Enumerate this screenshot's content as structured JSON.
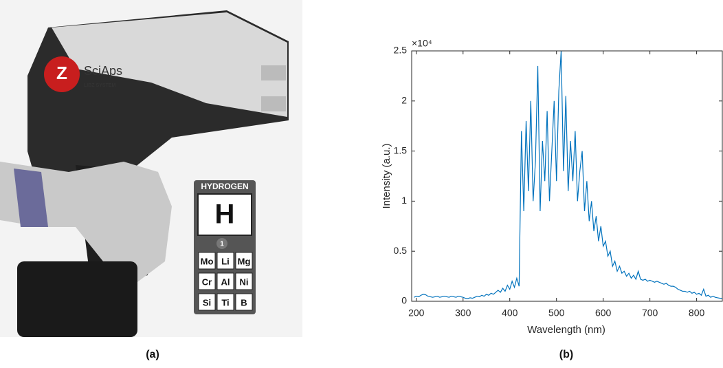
{
  "panels": {
    "a": "(a)",
    "b": "(b)"
  },
  "photo": {
    "brand": "SciAps",
    "model": "LIBZ SYSTEM",
    "badge": "HYDROGEN",
    "symbol": "H",
    "number": "1",
    "elements": [
      "Mo",
      "Li",
      "Mg",
      "Cr",
      "Al",
      "Ni",
      "Si",
      "Ti",
      "B"
    ]
  },
  "chart_data": {
    "type": "line",
    "xlabel": "Wavelength (nm)",
    "ylabel": "Intensity (a.u.)",
    "y_multiplier": "×10⁴",
    "color": "#0072bd",
    "grid": false,
    "xlim": [
      190,
      855
    ],
    "xticks": [
      200,
      300,
      400,
      500,
      600,
      700,
      800
    ],
    "ylim": [
      0,
      25000
    ],
    "yticks": [
      {
        "value": 0,
        "label": "0"
      },
      {
        "value": 5000,
        "label": "0.5"
      },
      {
        "value": 10000,
        "label": "1"
      },
      {
        "value": 15000,
        "label": "1.5"
      },
      {
        "value": 20000,
        "label": "2"
      },
      {
        "value": 25000,
        "label": "2.5"
      }
    ],
    "x": [
      195,
      200,
      205,
      210,
      215,
      220,
      225,
      230,
      235,
      240,
      245,
      250,
      255,
      260,
      265,
      270,
      275,
      280,
      285,
      290,
      295,
      300,
      305,
      310,
      315,
      320,
      325,
      330,
      335,
      340,
      345,
      350,
      355,
      360,
      365,
      370,
      375,
      380,
      385,
      390,
      395,
      400,
      405,
      410,
      415,
      420,
      425,
      430,
      435,
      440,
      445,
      450,
      455,
      460,
      465,
      470,
      475,
      480,
      485,
      490,
      495,
      500,
      505,
      510,
      515,
      520,
      525,
      530,
      535,
      540,
      545,
      550,
      555,
      560,
      565,
      570,
      575,
      580,
      585,
      590,
      595,
      600,
      605,
      610,
      615,
      620,
      625,
      630,
      635,
      640,
      645,
      650,
      655,
      660,
      665,
      670,
      675,
      680,
      685,
      690,
      695,
      700,
      705,
      710,
      715,
      720,
      725,
      730,
      735,
      740,
      745,
      750,
      755,
      760,
      765,
      770,
      775,
      780,
      785,
      790,
      795,
      800,
      805,
      810,
      815,
      820,
      825,
      830,
      835,
      840,
      845,
      850,
      855
    ],
    "values": [
      400,
      500,
      450,
      600,
      700,
      650,
      500,
      450,
      400,
      450,
      500,
      400,
      450,
      500,
      450,
      400,
      500,
      450,
      400,
      500,
      450,
      400,
      300,
      250,
      350,
      300,
      400,
      500,
      450,
      600,
      500,
      700,
      600,
      800,
      700,
      900,
      1100,
      900,
      1300,
      1000,
      1600,
      1200,
      2000,
      1400,
      2300,
      1500,
      17000,
      9000,
      18000,
      11000,
      20000,
      10000,
      14000,
      23500,
      9000,
      16000,
      12000,
      19000,
      10000,
      15000,
      20000,
      12000,
      21000,
      25000,
      13000,
      20500,
      11000,
      16000,
      12000,
      17000,
      10000,
      13000,
      15000,
      9000,
      12000,
      8000,
      10000,
      7000,
      8500,
      6000,
      7500,
      5500,
      6000,
      4500,
      5000,
      3500,
      4000,
      3000,
      3500,
      2800,
      3000,
      2500,
      2800,
      2300,
      2600,
      2200,
      3000,
      2200,
      2100,
      2200,
      2000,
      2100,
      2000,
      1900,
      2000,
      1900,
      1800,
      1700,
      1800,
      1600,
      1500,
      1500,
      1400,
      1200,
      1100,
      1000,
      1000,
      900,
      1000,
      800,
      900,
      700,
      800,
      600,
      1200,
      500,
      600,
      400,
      500,
      400,
      350,
      300,
      300
    ]
  }
}
